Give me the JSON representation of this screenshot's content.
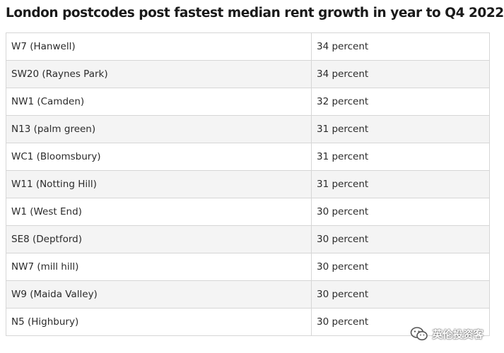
{
  "chart_data": {
    "type": "table",
    "title": "London postcodes post fastest median rent growth in year to Q4 2022",
    "rows": [
      {
        "postcode": "W7 (Hanwell)",
        "growth": "34 percent",
        "value": 34
      },
      {
        "postcode": "SW20 (Raynes Park)",
        "growth": "34 percent",
        "value": 34
      },
      {
        "postcode": "NW1 (Camden)",
        "growth": "32 percent",
        "value": 32
      },
      {
        "postcode": "N13 (palm green)",
        "growth": "31 percent",
        "value": 31
      },
      {
        "postcode": "WC1 (Bloomsbury)",
        "growth": "31 percent",
        "value": 31
      },
      {
        "postcode": "W11 (Notting Hill)",
        "growth": "31 percent",
        "value": 31
      },
      {
        "postcode": "W1 (West End)",
        "growth": "30 percent",
        "value": 30
      },
      {
        "postcode": "SE8 (Deptford)",
        "growth": "30 percent",
        "value": 30
      },
      {
        "postcode": "NW7 (mill hill)",
        "growth": "30 percent",
        "value": 30
      },
      {
        "postcode": "W9 (Maida Valley)",
        "growth": "30 percent",
        "value": 30
      },
      {
        "postcode": "N5 (Highbury)",
        "growth": "30 percent",
        "value": 30
      }
    ]
  },
  "watermark": {
    "text": "英伦投资客",
    "icon": "wechat-icon"
  },
  "colors": {
    "row_alt": "#f4f4f4",
    "border": "#d6d6d6",
    "text": "#2b2b2b"
  }
}
